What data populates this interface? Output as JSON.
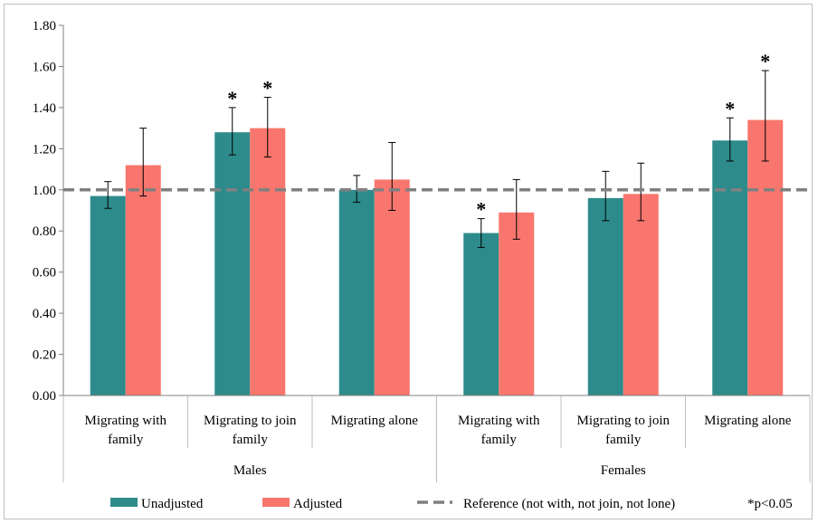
{
  "chart_data": {
    "type": "bar",
    "ylim": [
      0,
      1.8
    ],
    "y_ticks": [
      "0.00",
      "0.20",
      "0.40",
      "0.60",
      "0.80",
      "1.00",
      "1.20",
      "1.40",
      "1.60",
      "1.80"
    ],
    "groups": [
      {
        "name": "Males",
        "categories": [
          [
            "Migrating with",
            "family"
          ],
          [
            "Migrating to join",
            "family"
          ],
          [
            "Migrating alone"
          ]
        ]
      },
      {
        "name": "Females",
        "categories": [
          [
            "Migrating with",
            "family"
          ],
          [
            "Migrating to join",
            "family"
          ],
          [
            "Migrating alone"
          ]
        ]
      }
    ],
    "series": [
      {
        "name": "Unadjusted",
        "color": "#2e8b8b",
        "values": [
          0.97,
          1.28,
          1.0,
          0.79,
          0.96,
          1.24
        ],
        "ci_low": [
          0.91,
          1.17,
          0.94,
          0.72,
          0.85,
          1.14
        ],
        "ci_high": [
          1.04,
          1.4,
          1.07,
          0.86,
          1.09,
          1.35
        ],
        "significant": [
          false,
          true,
          false,
          true,
          false,
          true
        ]
      },
      {
        "name": "Adjusted",
        "color": "#f8766d",
        "values": [
          1.12,
          1.3,
          1.05,
          0.89,
          0.98,
          1.34
        ],
        "ci_low": [
          0.97,
          1.16,
          0.9,
          0.76,
          0.85,
          1.14
        ],
        "ci_high": [
          1.3,
          1.45,
          1.23,
          1.05,
          1.13,
          1.58
        ],
        "significant": [
          false,
          true,
          false,
          false,
          false,
          true
        ]
      }
    ],
    "reference": {
      "value": 1.0,
      "label": "Reference (not with, not join, not lone)",
      "color": "#808080"
    },
    "significance_marker": "*",
    "significance_note": "*p<0.05",
    "legend_position": "bottom",
    "grid": false
  }
}
